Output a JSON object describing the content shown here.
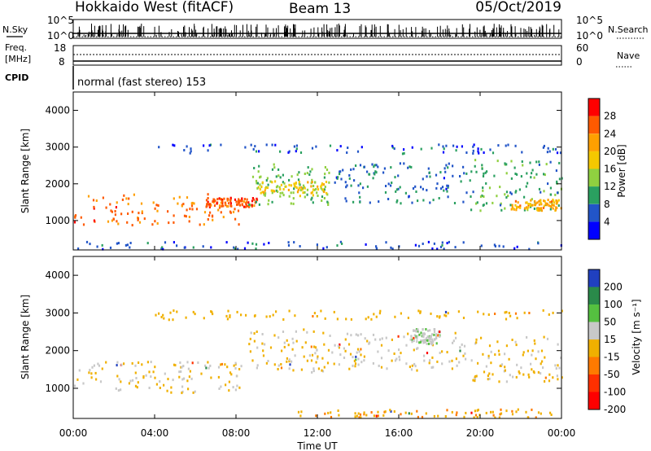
{
  "header": {
    "title": "Hokkaido West (fitACF)",
    "beam": "Beam 13",
    "date": "05/Oct/2019"
  },
  "noise_panel": {
    "left_label": "N.Sky",
    "right_label": "N.Search",
    "left_ticks": [
      "10^5",
      "10^0"
    ],
    "right_ticks": [
      "10^5",
      "10^0"
    ]
  },
  "freq_panel": {
    "left_label_line1": "Freq.",
    "left_label_line2": "[MHz]",
    "right_label": "Nave",
    "left_ticks": [
      "18",
      "8"
    ],
    "right_ticks": [
      "60",
      "0"
    ]
  },
  "cpid": {
    "label": "CPID",
    "text": "normal (fast stereo) 153"
  },
  "x_axis": {
    "label": "Time UT",
    "ticks": [
      "00:00",
      "04:00",
      "08:00",
      "12:00",
      "16:00",
      "20:00",
      "00:00"
    ]
  },
  "power_colorbar": {
    "label": "Power [dB]",
    "ticks": [
      "28",
      "24",
      "20",
      "16",
      "12",
      "8",
      "4"
    ],
    "colors": [
      "#ff0000",
      "#ff5a00",
      "#ffa000",
      "#f5c800",
      "#90d040",
      "#2aa060",
      "#2255c8",
      "#0000ff"
    ]
  },
  "velocity_colorbar": {
    "label": "Velocity [m s⁻¹]",
    "ticks": [
      "200",
      "100",
      "50",
      "15",
      "-15",
      "-50",
      "-100",
      "-200"
    ],
    "colors": [
      "#2040c0",
      "#2a8a4a",
      "#55c040",
      "#c8c8c8",
      "#f0b000",
      "#ff7a00",
      "#ff3000",
      "#ff0000"
    ]
  },
  "chart_data": [
    {
      "type": "heatmap",
      "panel": "power",
      "ylabel": "Slant Range [km]",
      "xlabel": "",
      "x_range_hours": [
        0,
        24
      ],
      "ylim_km": [
        200,
        4500
      ],
      "y_ticks": [
        "1000",
        "2000",
        "3000",
        "4000"
      ],
      "color_range_db": [
        0,
        32
      ],
      "regions": [
        {
          "t0": 0,
          "t1": 8.3,
          "r0": 900,
          "r1": 1750,
          "value_db": 26
        },
        {
          "t0": 6.5,
          "t1": 9,
          "r0": 1400,
          "r1": 1650,
          "value_db": 28
        },
        {
          "t0": 8.6,
          "t1": 12.8,
          "r0": 1450,
          "r1": 2600,
          "value_db": 12
        },
        {
          "t0": 9.0,
          "t1": 12.5,
          "r0": 1700,
          "r1": 2100,
          "value_db": 18
        },
        {
          "t0": 12.8,
          "t1": 19.5,
          "r0": 1500,
          "r1": 2600,
          "value_db": 6
        },
        {
          "t0": 19.5,
          "t1": 24,
          "r0": 1300,
          "r1": 2700,
          "value_db": 10
        },
        {
          "t0": 21.5,
          "t1": 24,
          "r0": 1300,
          "r1": 1600,
          "value_db": 22
        },
        {
          "t0": 0,
          "t1": 24,
          "r0": 250,
          "r1": 450,
          "value_db": 4
        },
        {
          "t0": 4,
          "t1": 24,
          "r0": 2850,
          "r1": 3100,
          "value_db": 4
        }
      ]
    },
    {
      "type": "heatmap",
      "panel": "velocity",
      "ylabel": "Slant Range [km]",
      "xlabel": "Time UT",
      "x_range_hours": [
        0,
        24
      ],
      "ylim_km": [
        200,
        4500
      ],
      "y_ticks": [
        "1000",
        "2000",
        "3000",
        "4000"
      ],
      "color_range_ms": [
        -200,
        200
      ],
      "regions": [
        {
          "t0": 0,
          "t1": 8.3,
          "r0": 900,
          "r1": 1750,
          "value_ms": 0
        },
        {
          "t0": 8.6,
          "t1": 12.8,
          "r0": 1450,
          "r1": 2600,
          "value_ms": 0
        },
        {
          "t0": 12.8,
          "t1": 19.5,
          "r0": 1500,
          "r1": 2500,
          "value_ms": 10
        },
        {
          "t0": 16.5,
          "t1": 18,
          "r0": 2200,
          "r1": 2600,
          "value_ms": 40
        },
        {
          "t0": 19.5,
          "t1": 24,
          "r0": 1200,
          "r1": 2400,
          "value_ms": -10
        },
        {
          "t0": 11,
          "t1": 23.5,
          "r0": 250,
          "r1": 480,
          "value_ms": -40
        },
        {
          "t0": 4,
          "t1": 24,
          "r0": 2850,
          "r1": 3100,
          "value_ms": -30
        }
      ]
    }
  ]
}
